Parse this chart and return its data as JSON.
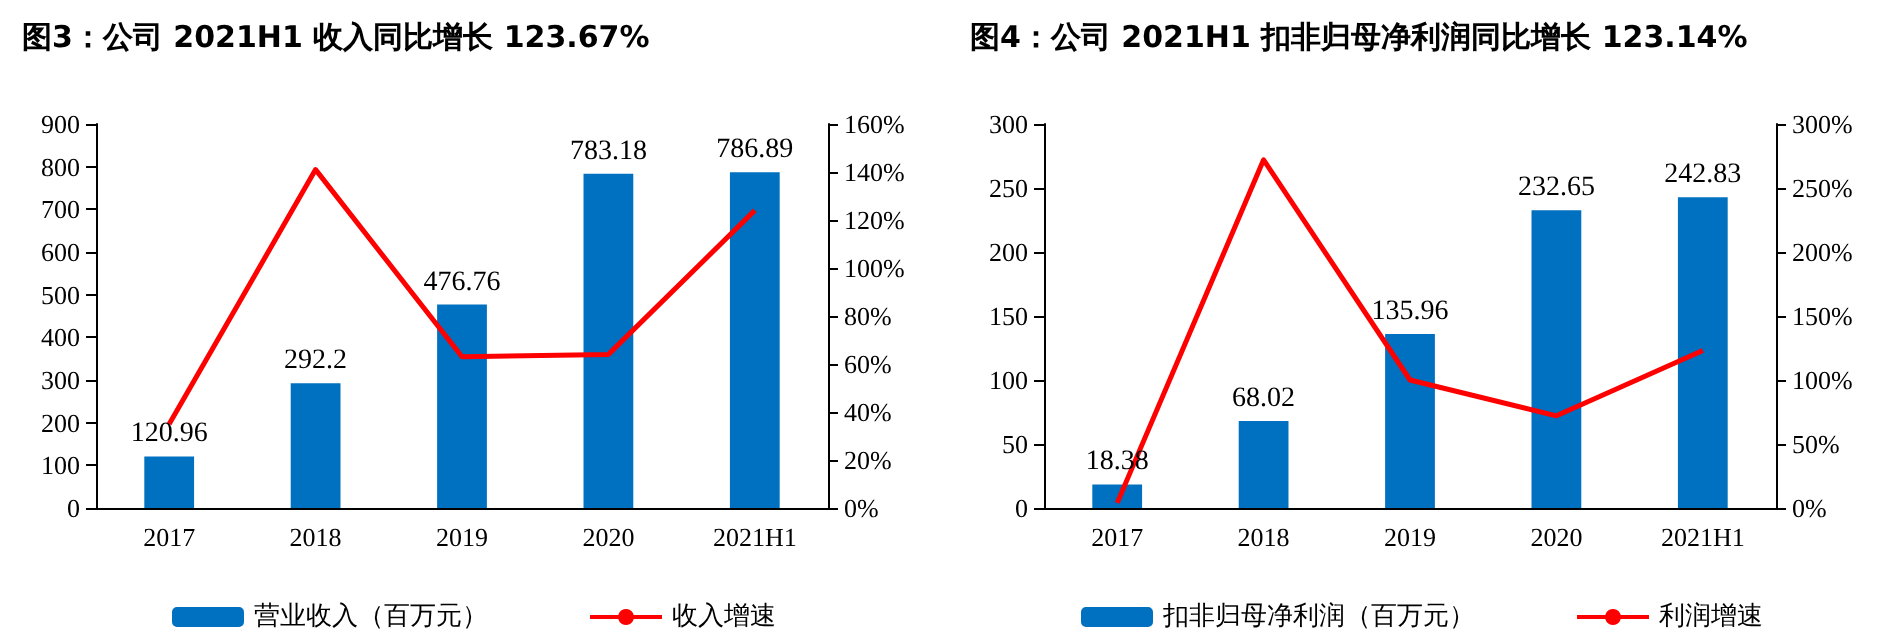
{
  "chart_data": [
    {
      "type": "bar",
      "title": "图3：公司 2021H1 收入同比增长 123.67%",
      "categories": [
        "2017",
        "2018",
        "2019",
        "2020",
        "2021H1"
      ],
      "series": [
        {
          "name": "营业收入（百万元）",
          "type": "bar",
          "color": "#0070c0",
          "values": [
            120.96,
            292.2,
            476.76,
            783.18,
            786.89
          ],
          "value_labels": [
            "120.96",
            "292.2",
            "476.76",
            "783.18",
            "786.89"
          ]
        },
        {
          "name": "收入增速",
          "type": "line",
          "axis": "y2",
          "color": "#ff0000",
          "values": [
            35,
            141,
            63,
            64,
            124
          ]
        }
      ],
      "ylim": [
        0,
        900
      ],
      "yticks": [
        0,
        100,
        200,
        300,
        400,
        500,
        600,
        700,
        800,
        900
      ],
      "y2lim": [
        0,
        160
      ],
      "y2ticks": [
        {
          "value": 0,
          "label": "0%"
        },
        {
          "value": 20,
          "label": "20%"
        },
        {
          "value": 40,
          "label": "40%"
        },
        {
          "value": 60,
          "label": "60%"
        },
        {
          "value": 80,
          "label": "80%"
        },
        {
          "value": 100,
          "label": "100%"
        },
        {
          "value": 120,
          "label": "120%"
        },
        {
          "value": 140,
          "label": "140%"
        },
        {
          "value": 160,
          "label": "160%"
        }
      ],
      "grid": false,
      "legend": "bottom",
      "marker": "none"
    },
    {
      "type": "bar",
      "title": "图4：公司 2021H1 扣非归母净利润同比增长 123.14%",
      "categories": [
        "2017",
        "2018",
        "2019",
        "2020",
        "2021H1"
      ],
      "series": [
        {
          "name": "扣非归母净利润（百万元）",
          "type": "bar",
          "color": "#0070c0",
          "values": [
            18.38,
            68.02,
            135.96,
            232.65,
            242.83
          ],
          "value_labels": [
            "18.38",
            "68.02",
            "135.96",
            "232.65",
            "242.83"
          ]
        },
        {
          "name": "利润增速",
          "type": "line",
          "axis": "y2",
          "color": "#ff0000",
          "values": [
            4,
            272,
            100,
            72,
            123
          ]
        }
      ],
      "ylim": [
        0,
        300
      ],
      "yticks": [
        0,
        50,
        100,
        150,
        200,
        250,
        300
      ],
      "y2lim": [
        0,
        300
      ],
      "y2ticks": [
        {
          "value": 0,
          "label": "0%"
        },
        {
          "value": 50,
          "label": "50%"
        },
        {
          "value": 100,
          "label": "100%"
        },
        {
          "value": 150,
          "label": "150%"
        },
        {
          "value": 200,
          "label": "200%"
        },
        {
          "value": 250,
          "label": "250%"
        },
        {
          "value": 300,
          "label": "300%"
        }
      ],
      "grid": false,
      "legend": "bottom",
      "marker": "none"
    }
  ]
}
